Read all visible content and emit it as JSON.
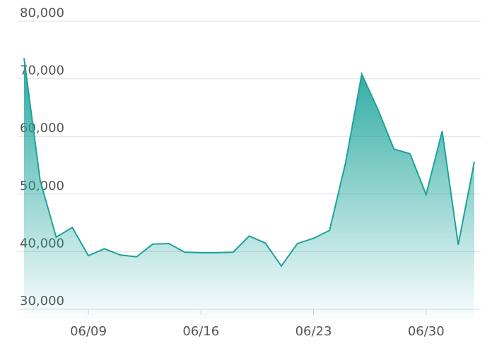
{
  "chart_data": {
    "type": "area",
    "categories": [
      null,
      null,
      null,
      null,
      "06/09",
      null,
      null,
      null,
      null,
      null,
      null,
      "06/16",
      null,
      null,
      null,
      null,
      null,
      null,
      "06/23",
      null,
      null,
      null,
      null,
      null,
      null,
      "06/30",
      null,
      null,
      null
    ],
    "values": [
      73600,
      52400,
      42500,
      44200,
      39300,
      40500,
      39400,
      39100,
      41300,
      41400,
      39900,
      39800,
      39800,
      39900,
      42700,
      41500,
      37500,
      41400,
      42300,
      43700,
      55500,
      70800,
      64700,
      57800,
      57000,
      49900,
      60900,
      41200,
      55600
    ],
    "color": "#1ba39b",
    "ylim": [
      30000,
      80000
    ],
    "yticks": [
      {
        "value": 30000,
        "label": "30,000"
      },
      {
        "value": 40000,
        "label": "40,000"
      },
      {
        "value": 50000,
        "label": "50,000"
      },
      {
        "value": 60000,
        "label": "60,000"
      },
      {
        "value": 70000,
        "label": "70,000"
      },
      {
        "value": 80000,
        "label": "80,000"
      }
    ],
    "grid": true
  }
}
